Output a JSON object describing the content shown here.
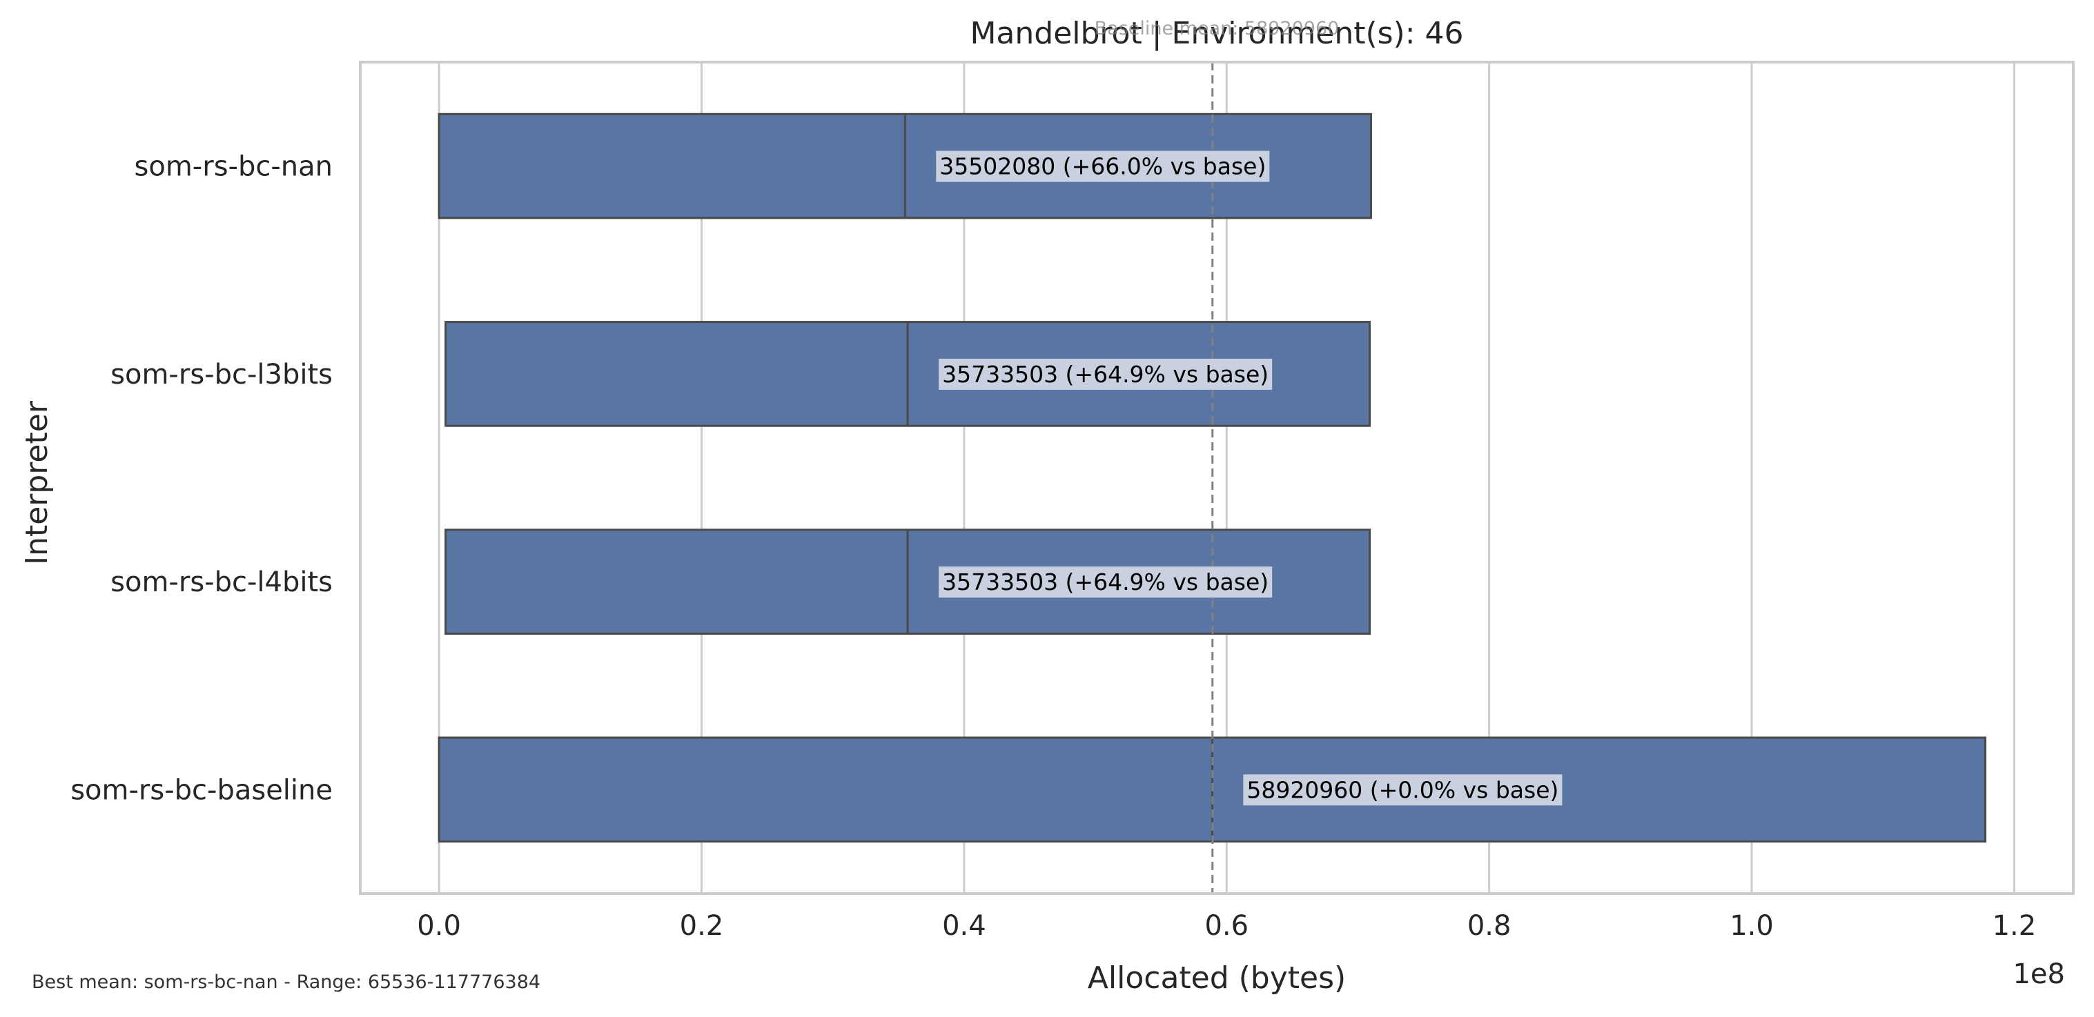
{
  "chart_data": {
    "type": "box",
    "orientation": "horizontal",
    "title": "Mandelbrot | Environment(s): 46",
    "xlabel": "Allocated (bytes)",
    "ylabel": "Interpreter",
    "x_ticks": [
      "0.0",
      "0.2",
      "0.4",
      "0.6",
      "0.8",
      "1.0",
      "1.2"
    ],
    "x_offset_label": "1e8",
    "x_scale_exponent": 8,
    "xlim": [
      -0.06,
      1.245
    ],
    "grid": "vertical",
    "bar_color": "#5975a4",
    "edge_color": "#4a4a4a",
    "label_bg": "#c9d0e0",
    "baseline_mean": 58920960,
    "baseline_mean_label": "Baseline mean: 58920960",
    "categories": [
      "som-rs-bc-nan",
      "som-rs-bc-l3bits",
      "som-rs-bc-l4bits",
      "som-rs-bc-baseline"
    ],
    "boxes": [
      {
        "name": "som-rs-bc-nan",
        "q1": 0.0,
        "median": 0.355,
        "q3": 0.71,
        "mean_label": "35502080  (+66.0% vs base)"
      },
      {
        "name": "som-rs-bc-l3bits",
        "q1": 0.005,
        "median": 0.357,
        "q3": 0.709,
        "mean_label": "35733503  (+64.9% vs base)"
      },
      {
        "name": "som-rs-bc-l4bits",
        "q1": 0.005,
        "median": 0.357,
        "q3": 0.709,
        "mean_label": "35733503  (+64.9% vs base)"
      },
      {
        "name": "som-rs-bc-baseline",
        "q1": 0.0,
        "median": 0.589,
        "q3": 1.178,
        "mean_label": "58920960  (+0.0% vs base)"
      }
    ]
  },
  "footer": {
    "note": "Best mean: som-rs-bc-nan - Range: 65536-117776384"
  }
}
